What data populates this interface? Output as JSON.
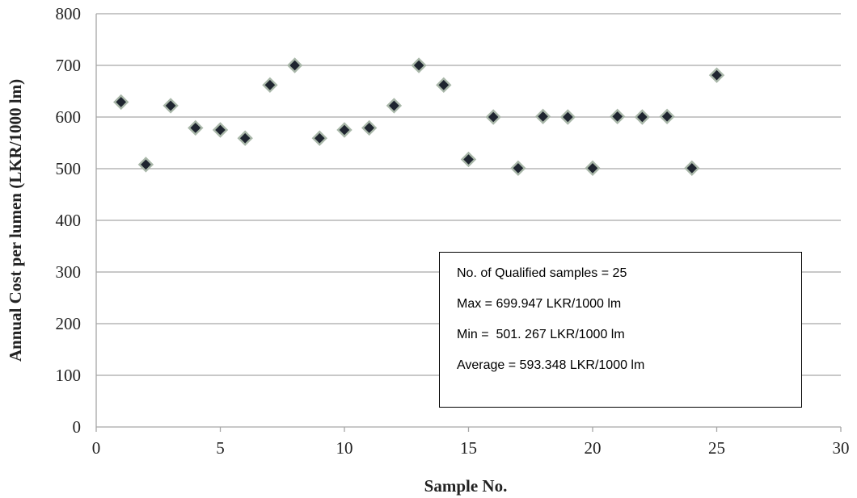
{
  "chart_data": {
    "type": "scatter",
    "xlabel": "Sample No.",
    "ylabel": "Annual Cost per lumen (LKR/1000 lm)",
    "xlim": [
      0,
      30
    ],
    "ylim": [
      0,
      800
    ],
    "x_ticks": [
      "0",
      "5",
      "10",
      "15",
      "20",
      "25",
      "30"
    ],
    "y_ticks": [
      "0",
      "100",
      "200",
      "300",
      "400",
      "500",
      "600",
      "700",
      "800"
    ],
    "grid": "horizontal",
    "marker": "diamond",
    "colors": {
      "marker_fill": "#1f2530",
      "marker_edge": "#a9b7a9",
      "grid": "#a6a6a6"
    },
    "series": [
      {
        "x": [
          1,
          2,
          3,
          4,
          5,
          6,
          7,
          8,
          9,
          10,
          11,
          12,
          13,
          14,
          15,
          16,
          17,
          18,
          19,
          20,
          21,
          22,
          23,
          24,
          25
        ],
        "y": [
          629,
          508,
          622,
          579,
          575,
          559,
          662,
          700,
          559,
          575,
          579,
          622,
          700,
          662,
          518,
          600,
          501,
          601,
          600,
          501,
          601,
          600,
          601,
          501,
          681
        ]
      }
    ],
    "annotations": [
      "No. of Qualified samples = 25",
      "Max = 699.947 LKR/1000 lm",
      "Min =  501. 267 LKR/1000 lm",
      "Average = 593.348 LKR/1000 lm"
    ]
  }
}
